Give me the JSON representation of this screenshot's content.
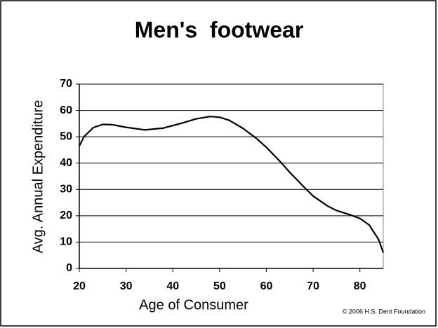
{
  "chart_data": {
    "type": "line",
    "title": "Men's  footwear",
    "x_label": "Age of Consumer",
    "y_label": "Avg. Annual Expenditure",
    "footnote": "© 2006 H.S. Dent Foundation",
    "x": [
      20,
      21,
      23,
      25,
      27,
      30,
      34,
      38,
      42,
      45,
      48,
      50,
      52,
      55,
      58,
      60,
      63,
      65,
      68,
      70,
      73,
      75,
      78,
      80,
      82,
      84,
      85
    ],
    "series": [
      {
        "color": "#000000",
        "values": [
          46.5,
          50,
          53.5,
          54.7,
          54.6,
          53.6,
          52.6,
          53.3,
          55.2,
          56.8,
          57.7,
          57.4,
          56.3,
          53.2,
          49.2,
          46,
          40.5,
          36.5,
          31,
          27.5,
          23.8,
          22,
          20.3,
          19,
          16.5,
          11,
          6
        ]
      }
    ],
    "xlim": [
      20,
      85
    ],
    "xticks": [
      20,
      30,
      40,
      50,
      60,
      70,
      80
    ],
    "ylim": [
      0,
      70
    ],
    "yticks": [
      0,
      10,
      20,
      30,
      40,
      50,
      60,
      70
    ],
    "grid": true
  }
}
